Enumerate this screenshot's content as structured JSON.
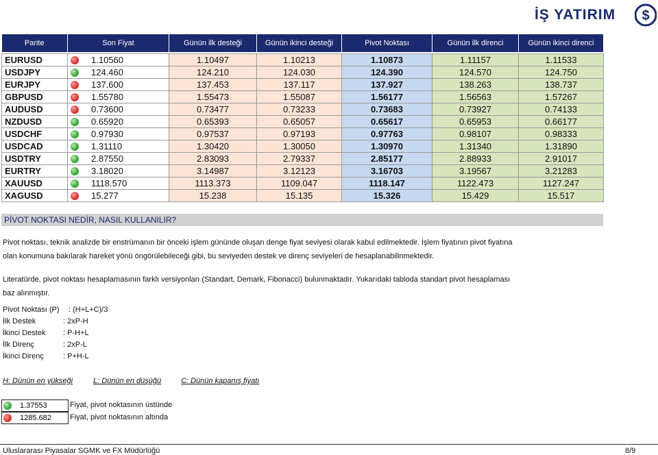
{
  "logo": "İŞ YATIRIM",
  "table": {
    "headers": [
      "Parite",
      "Son Fiyat",
      "Günün ilk desteği",
      "Günün ikinci desteği",
      "Pivot Noktası",
      "Günün ilk direnci",
      "Günün ikinci direnci"
    ],
    "rows": [
      {
        "cells": [
          "EURUSD",
          "1.10560",
          "1.10497",
          "1.10213",
          "1.10873",
          "1.11157",
          "1.11533"
        ],
        "signal": "red"
      },
      {
        "cells": [
          "USDJPY",
          "124.460",
          "124.210",
          "124.030",
          "124.390",
          "124.570",
          "124.750"
        ],
        "signal": "green"
      },
      {
        "cells": [
          "EURJPY",
          "137.600",
          "137.453",
          "137.117",
          "137.927",
          "138.263",
          "138.737"
        ],
        "signal": "red"
      },
      {
        "cells": [
          "GBPUSD",
          "1.55780",
          "1.55473",
          "1.55087",
          "1.56177",
          "1.56563",
          "1.57267"
        ],
        "signal": "red"
      },
      {
        "cells": [
          "AUDUSD",
          "0.73600",
          "0.73477",
          "0.73233",
          "0.73683",
          "0.73927",
          "0.74133"
        ],
        "signal": "red"
      },
      {
        "cells": [
          "NZDUSD",
          "0.65920",
          "0.65393",
          "0.65057",
          "0.65617",
          "0.65953",
          "0.66177"
        ],
        "signal": "green"
      },
      {
        "cells": [
          "USDCHF",
          "0.97930",
          "0.97537",
          "0.97193",
          "0.97763",
          "0.98107",
          "0.98333"
        ],
        "signal": "green"
      },
      {
        "cells": [
          "USDCAD",
          "1.31110",
          "1.30420",
          "1.30050",
          "1.30970",
          "1.31340",
          "1.31890"
        ],
        "signal": "green"
      },
      {
        "cells": [
          "USDTRY",
          "2.87550",
          "2.83093",
          "2.79337",
          "2.85177",
          "2.88933",
          "2.91017"
        ],
        "signal": "green"
      },
      {
        "cells": [
          "EURTRY",
          "3.18020",
          "3.14987",
          "3.12123",
          "3.16703",
          "3.19567",
          "3.21283"
        ],
        "signal": "green"
      },
      {
        "cells": [
          "XAUUSD",
          "1118.570",
          "1113.373",
          "1109.047",
          "1118.147",
          "1122.473",
          "1127.247"
        ],
        "signal": "green"
      },
      {
        "cells": [
          "XAGUSD",
          "15.277",
          "15.238",
          "15.135",
          "15.326",
          "15.429",
          "15.517"
        ],
        "signal": "red"
      }
    ]
  },
  "section": {
    "title": "PİVOT NOKTASI NEDİR, NASIL KULLANILIR?",
    "paragraphs": [
      [
        "Pivot noktası, teknik analizde bir enstrümanın bir önceki işlem gününde oluşan denge fiyat seviyesi olarak kabul edilmektedir. İşlem fiyatının pivot fiyatına",
        "olan konumuna bakılarak hareket yönü öngörülebileceği gibi, bu seviyeden destek ve direnç seviyeleri de hesaplanabilinmektedir."
      ],
      [
        "Literatürde, pivot noktası hesaplamasının farklı versiyonları (Standart, Demark, Fibonacci) bulunmaktadır. Yukarıdaki tabloda standart pivot hesaplaması",
        "baz alınmıştır."
      ]
    ]
  },
  "formulas": [
    {
      "label": "Pivot Noktası (P)",
      "formula": ": (H+L+C)/3"
    },
    {
      "label": "İlk Destek",
      "formula": ": 2xP-H"
    },
    {
      "label": "İkinci Destek",
      "formula": ": P-H+L"
    },
    {
      "label": "İlk Direnç",
      "formula": ": 2xP-L"
    },
    {
      "label": "İkinci Direnç",
      "formula": ": P+H-L"
    }
  ],
  "definitions": [
    "H: Dünün en yükseği",
    "L: Dünün en düşüğü",
    "C: Dünün kapanış fiyatı"
  ],
  "legend": [
    {
      "value": "1.37553",
      "text": "Fiyat, pivot noktasının üstünde",
      "signal": "green"
    },
    {
      "value": "1285.682",
      "text": "Fiyat, pivot noktasının altında",
      "signal": "red"
    }
  ],
  "footer": {
    "left": "Uluslararası Piyasalar SGMK ve FX Müdürlüğü",
    "page": "8/9"
  }
}
